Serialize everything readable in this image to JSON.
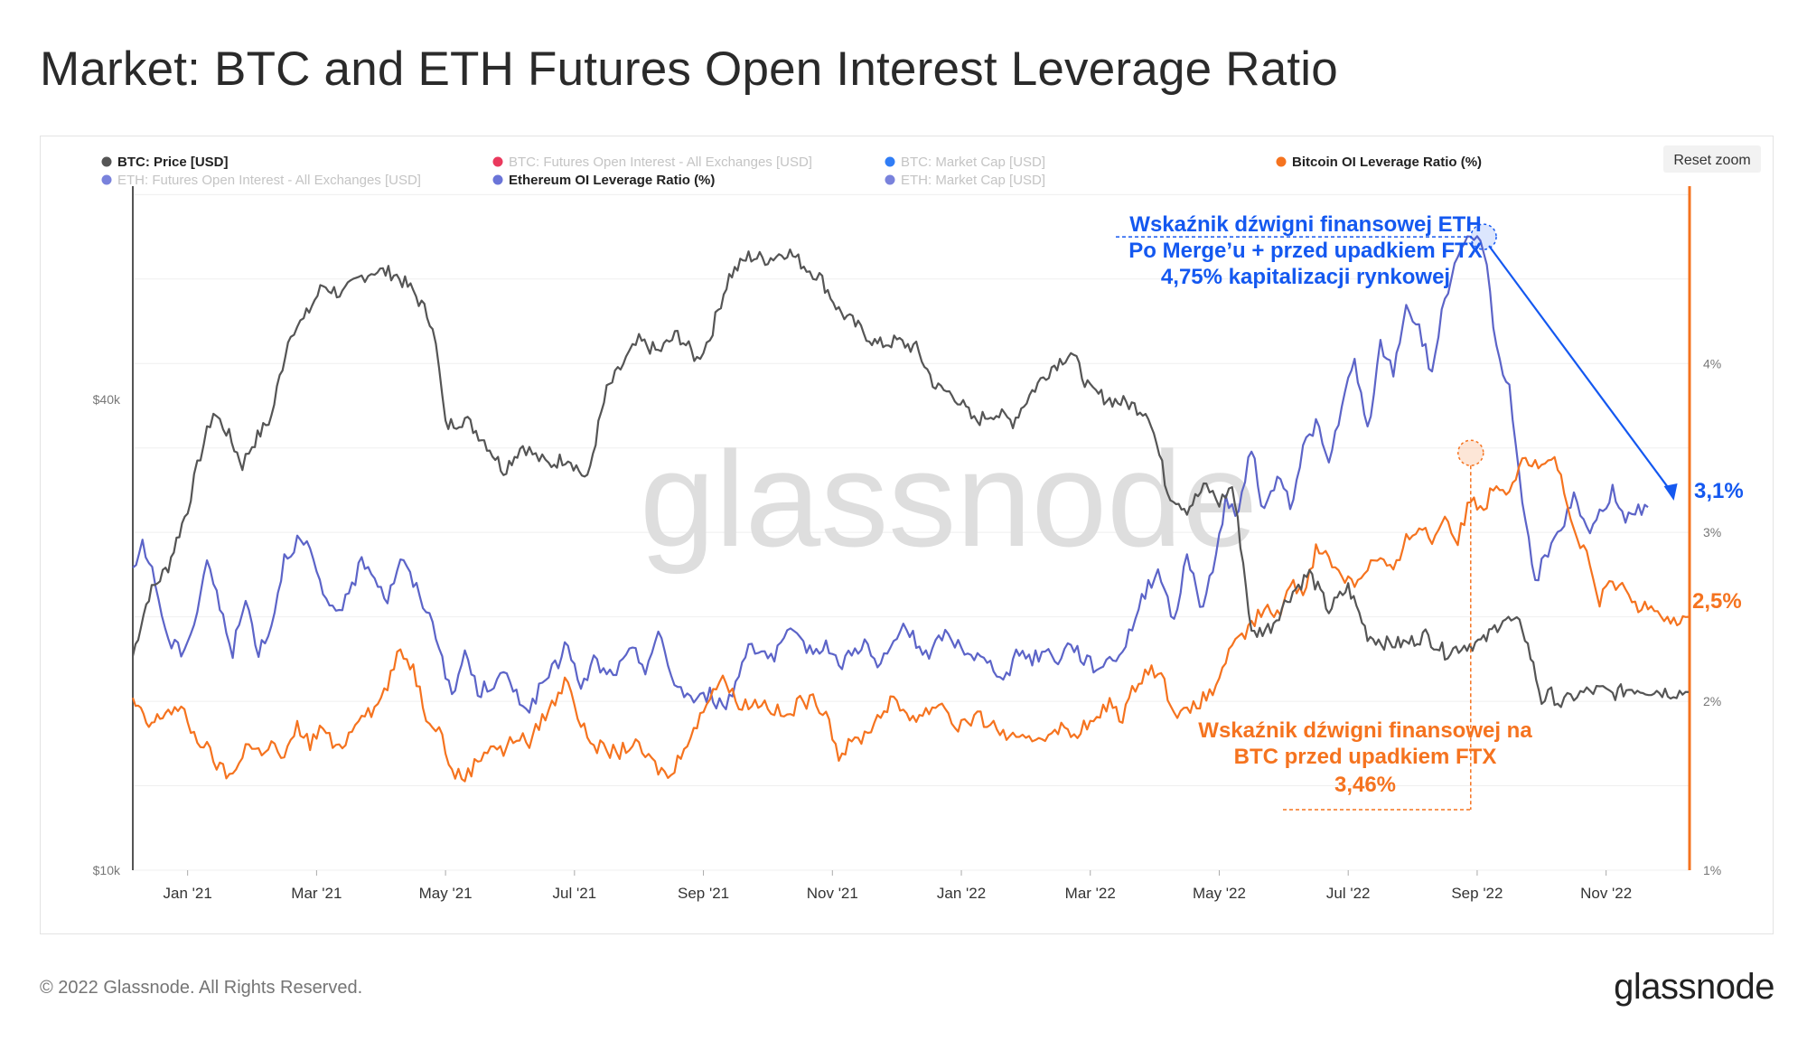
{
  "title": "Market: BTC and ETH Futures Open Interest Leverage Ratio",
  "footer": "© 2022 Glassnode. All Rights Reserved.",
  "logo": "glassnode",
  "watermark": "glassnode",
  "reset_zoom": "Reset zoom",
  "legend": [
    {
      "label": "BTC: Price [USD]",
      "color": "#555555",
      "active": true
    },
    {
      "label": "BTC: Futures Open Interest - All Exchanges [USD]",
      "color": "#e8244b",
      "active": false
    },
    {
      "label": "BTC: Market Cap [USD]",
      "color": "#1a6ff5",
      "active": false
    },
    {
      "label": "Bitcoin OI Leverage Ratio (%)",
      "color": "#f5731f",
      "active": true
    },
    {
      "label": "ETH: Futures Open Interest - All Exchanges [USD]",
      "color": "#6a74d8",
      "active": false
    },
    {
      "label": "Ethereum OI Leverage Ratio (%)",
      "color": "#6a74d8",
      "active": true
    },
    {
      "label": "ETH: Market Cap [USD]",
      "color": "#6a74d8",
      "active": false
    }
  ],
  "annotations": {
    "eth_lines": [
      "Wskaźnik dźwigni finansowej ETH",
      "Po Merge’u + przed upadkiem FTX",
      "4,75% kapitalizacji rynkowej"
    ],
    "btc_lines": [
      "Wskaźnik dźwigni finansowej na",
      "BTC przed upadkiem FTX",
      "3,46%"
    ],
    "eth_end": "3,1%",
    "btc_end": "2,5%"
  },
  "colors": {
    "btc_price": "#555555",
    "btc_ratio": "#f5731f",
    "eth_ratio": "#5c64c8",
    "eth_annot": "#1458f0",
    "btc_annot": "#f5731f"
  },
  "chart_data": {
    "type": "line",
    "x_ticks": [
      "Jan '21",
      "Mar '21",
      "May '21",
      "Jul '21",
      "Sep '21",
      "Nov '21",
      "Jan '22",
      "Mar '22",
      "May '22",
      "Jul '22",
      "Sep '22",
      "Nov '22"
    ],
    "y_left": {
      "scale": "log",
      "ticks": [
        "$10k",
        "$40k"
      ],
      "tick_values": [
        10000,
        40000
      ],
      "range": [
        10000,
        75000
      ]
    },
    "y_right": {
      "scale": "linear",
      "ticks": [
        "1%",
        "2%",
        "3%",
        "4%"
      ],
      "tick_values": [
        1,
        2,
        3,
        4
      ],
      "range": [
        1,
        5.05
      ]
    },
    "x_range_months": [
      -0.85,
      23.28
    ],
    "series": [
      {
        "name": "BTC: Price [USD]",
        "axis": "left",
        "color": "#555555",
        "t": [
          -0.85,
          -0.6,
          -0.3,
          0,
          0.2,
          0.4,
          0.6,
          0.85,
          1.0,
          1.3,
          1.6,
          1.8,
          2.1,
          2.4,
          2.7,
          2.9,
          3.2,
          3.5,
          3.8,
          4.0,
          4.3,
          4.6,
          4.9,
          5.2,
          5.4,
          5.6,
          5.9,
          6.2,
          6.5,
          6.8,
          7.0,
          7.3,
          7.6,
          7.9,
          8.1,
          8.4,
          8.7,
          9.0,
          9.3,
          9.6,
          9.8,
          10.1,
          10.4,
          10.7,
          11.0,
          11.3,
          11.6,
          11.9,
          12.2,
          12.5,
          12.8,
          13.1,
          13.4,
          13.7,
          14.0,
          14.3,
          14.6,
          14.9,
          15.2,
          15.5,
          15.8,
          16.0,
          16.2,
          16.5,
          16.8,
          17.1,
          17.4,
          17.7,
          18.0,
          18.3,
          18.6,
          18.9,
          19.2,
          19.5,
          19.8,
          20.1,
          20.4,
          20.7,
          21.0,
          21.15,
          21.3,
          21.5,
          21.7,
          21.9,
          22.1,
          22.4,
          22.7,
          23.0,
          23.28
        ],
        "v": [
          18800,
          22500,
          24500,
          29000,
          34000,
          38500,
          36500,
          33000,
          35000,
          38000,
          49000,
          50500,
          56000,
          54500,
          57500,
          58500,
          58000,
          55000,
          50000,
          37000,
          37800,
          35500,
          32500,
          35000,
          33800,
          33000,
          33800,
          31500,
          41000,
          45000,
          47500,
          46000,
          48500,
          45000,
          48000,
          57500,
          61000,
          60500,
          62000,
          59000,
          57500,
          52000,
          49500,
          47000,
          47500,
          46500,
          41500,
          40500,
          37500,
          38500,
          37500,
          41000,
          44000,
          46000,
          41000,
          40000,
          39500,
          38500,
          30500,
          29000,
          31000,
          29500,
          31000,
          20000,
          20500,
          22500,
          24000,
          21500,
          23000,
          20000,
          19500,
          19500,
          20000,
          19000,
          19400,
          19600,
          21000,
          20500,
          16500,
          16800,
          16300,
          16700,
          16900,
          17000,
          16800,
          17100,
          17000,
          16900,
          16900
        ]
      },
      {
        "name": "Bitcoin OI Leverage Ratio (%)",
        "axis": "right",
        "color": "#f5731f",
        "t": [
          -0.85,
          -0.6,
          -0.3,
          -0.1,
          0.1,
          0.3,
          0.5,
          0.7,
          0.9,
          1.1,
          1.3,
          1.5,
          1.7,
          1.9,
          2.1,
          2.3,
          2.5,
          2.7,
          2.9,
          3.1,
          3.3,
          3.5,
          3.7,
          3.9,
          4.1,
          4.3,
          4.5,
          4.7,
          4.9,
          5.1,
          5.3,
          5.5,
          5.7,
          5.9,
          6.1,
          6.3,
          6.5,
          6.7,
          6.9,
          7.1,
          7.3,
          7.5,
          7.7,
          7.9,
          8.1,
          8.3,
          8.5,
          8.7,
          8.9,
          9.1,
          9.3,
          9.5,
          9.7,
          9.9,
          10.1,
          10.3,
          10.5,
          10.7,
          10.9,
          11.1,
          11.3,
          11.5,
          11.7,
          11.9,
          12.1,
          12.3,
          12.5,
          12.7,
          12.9,
          13.1,
          13.3,
          13.5,
          13.7,
          13.9,
          14.1,
          14.3,
          14.5,
          14.7,
          14.9,
          15.1,
          15.3,
          15.5,
          15.7,
          15.9,
          16.1,
          16.3,
          16.5,
          16.7,
          16.9,
          17.1,
          17.3,
          17.5,
          17.7,
          17.9,
          18.1,
          18.3,
          18.5,
          18.7,
          18.9,
          19.1,
          19.3,
          19.5,
          19.7,
          19.9,
          20.1,
          20.3,
          20.5,
          20.7,
          20.9,
          21.0,
          21.15,
          21.3,
          21.5,
          21.7,
          21.9,
          22.1,
          22.3,
          22.5,
          22.7,
          22.9,
          23.1,
          23.28
        ],
        "v": [
          2.0,
          1.85,
          1.95,
          1.95,
          1.8,
          1.72,
          1.6,
          1.55,
          1.75,
          1.7,
          1.75,
          1.65,
          1.85,
          1.75,
          1.85,
          1.7,
          1.8,
          1.95,
          1.95,
          2.1,
          2.3,
          2.2,
          1.92,
          1.85,
          1.58,
          1.55,
          1.65,
          1.75,
          1.7,
          1.8,
          1.75,
          1.9,
          2.0,
          2.15,
          1.85,
          1.75,
          1.7,
          1.7,
          1.75,
          1.68,
          1.6,
          1.55,
          1.75,
          1.85,
          2.05,
          2.15,
          2.0,
          1.98,
          2.0,
          1.95,
          1.9,
          2.0,
          2.0,
          1.95,
          1.68,
          1.75,
          1.8,
          1.9,
          2.0,
          1.95,
          1.9,
          1.95,
          2.0,
          1.85,
          1.88,
          1.9,
          1.85,
          1.8,
          1.75,
          1.78,
          1.8,
          1.85,
          1.8,
          1.85,
          1.88,
          2.0,
          1.9,
          2.1,
          2.2,
          2.15,
          1.95,
          1.92,
          2.0,
          2.05,
          2.25,
          2.35,
          2.45,
          2.55,
          2.5,
          2.7,
          2.65,
          2.9,
          2.85,
          2.75,
          2.7,
          2.8,
          2.85,
          2.75,
          2.95,
          3.05,
          2.95,
          3.1,
          2.95,
          3.2,
          3.15,
          3.3,
          3.25,
          3.46,
          3.4,
          3.38,
          3.46,
          3.3,
          3.0,
          2.85,
          2.6,
          2.7,
          2.65,
          2.55,
          2.6,
          2.5,
          2.48,
          2.5
        ]
      },
      {
        "name": "Ethereum OI Leverage Ratio (%)",
        "axis": "right",
        "color": "#5c64c8",
        "t": [
          -0.85,
          -0.7,
          -0.5,
          -0.3,
          -0.1,
          0.1,
          0.3,
          0.5,
          0.7,
          0.9,
          1.1,
          1.3,
          1.5,
          1.7,
          1.9,
          2.1,
          2.3,
          2.5,
          2.7,
          2.9,
          3.1,
          3.3,
          3.5,
          3.7,
          3.9,
          4.1,
          4.3,
          4.5,
          4.7,
          4.9,
          5.1,
          5.3,
          5.5,
          5.7,
          5.9,
          6.1,
          6.3,
          6.5,
          6.7,
          6.9,
          7.1,
          7.3,
          7.5,
          7.7,
          7.9,
          8.1,
          8.3,
          8.5,
          8.7,
          8.9,
          9.1,
          9.3,
          9.5,
          9.7,
          9.9,
          10.1,
          10.3,
          10.5,
          10.7,
          10.9,
          11.1,
          11.3,
          11.5,
          11.7,
          11.9,
          12.1,
          12.3,
          12.5,
          12.7,
          12.9,
          13.1,
          13.3,
          13.5,
          13.7,
          13.9,
          14.1,
          14.3,
          14.5,
          14.7,
          14.9,
          15.1,
          15.3,
          15.5,
          15.7,
          15.9,
          16.1,
          16.3,
          16.5,
          16.7,
          16.9,
          17.1,
          17.3,
          17.5,
          17.7,
          17.9,
          18.1,
          18.3,
          18.5,
          18.7,
          18.9,
          19.1,
          19.3,
          19.5,
          19.7,
          19.9,
          20.1,
          20.3,
          20.5,
          20.7,
          20.9,
          21.1,
          21.3,
          21.5,
          21.7,
          21.9,
          22.1,
          22.3,
          22.5,
          22.7,
          22.9,
          23.1,
          23.28
        ],
        "v": [
          2.75,
          2.95,
          2.7,
          2.35,
          2.3,
          2.45,
          2.85,
          2.55,
          2.3,
          2.6,
          2.3,
          2.45,
          2.85,
          2.95,
          2.9,
          2.6,
          2.55,
          2.6,
          2.85,
          2.75,
          2.6,
          2.85,
          2.7,
          2.55,
          2.35,
          2.0,
          2.3,
          2.05,
          2.1,
          2.15,
          2.05,
          1.95,
          2.1,
          2.2,
          2.35,
          2.05,
          2.25,
          2.15,
          2.2,
          2.3,
          2.2,
          2.4,
          2.15,
          2.05,
          2.0,
          2.05,
          1.95,
          2.1,
          2.35,
          2.3,
          2.25,
          2.4,
          2.35,
          2.3,
          2.35,
          2.2,
          2.3,
          2.35,
          2.2,
          2.3,
          2.45,
          2.35,
          2.25,
          2.4,
          2.35,
          2.3,
          2.25,
          2.2,
          2.15,
          2.3,
          2.25,
          2.3,
          2.25,
          2.35,
          2.25,
          2.2,
          2.25,
          2.3,
          2.5,
          2.7,
          2.75,
          2.45,
          2.9,
          2.55,
          2.75,
          3.2,
          3.1,
          3.5,
          3.1,
          3.35,
          3.15,
          3.5,
          3.65,
          3.4,
          3.75,
          4.0,
          3.6,
          4.1,
          3.95,
          4.35,
          4.2,
          3.95,
          4.4,
          4.6,
          4.75,
          4.7,
          4.1,
          3.85,
          3.2,
          2.7,
          2.9,
          3.0,
          3.2,
          3.0,
          3.1,
          3.25,
          3.1,
          3.15,
          3.1
        ]
      }
    ]
  }
}
